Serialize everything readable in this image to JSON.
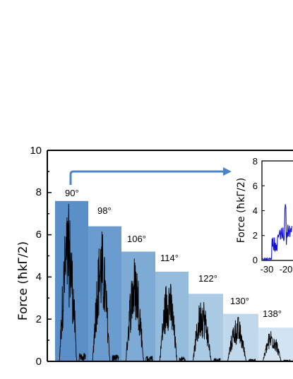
{
  "chart_data": [
    {
      "type": "bar",
      "ylabel": "Force (ħkΓ/2)",
      "ylim": [
        0,
        10
      ],
      "yticks": [
        "0",
        "2",
        "4",
        "6",
        "8",
        "10"
      ],
      "categories": [
        "90°",
        "98°",
        "106°",
        "114°",
        "122°",
        "130°",
        "138°"
      ],
      "values": [
        7.6,
        6.4,
        5.2,
        4.25,
        3.2,
        2.25,
        1.6
      ],
      "colors": [
        "#5b8fc8",
        "#6a9ccf",
        "#7eabd6",
        "#95bbdd",
        "#abcbe5",
        "#bfd8ec",
        "#d2e4f2"
      ],
      "trace_color": "#000000",
      "arrow_color": "#4a86c5"
    },
    {
      "type": "line",
      "ylabel": "Force (ħkΓ/2)",
      "ylim": [
        0,
        8
      ],
      "yticks": [
        "0",
        "2",
        "4",
        "6",
        "8"
      ],
      "xticks": [
        "-30",
        "-20"
      ],
      "series_color": "#1010d8"
    }
  ]
}
